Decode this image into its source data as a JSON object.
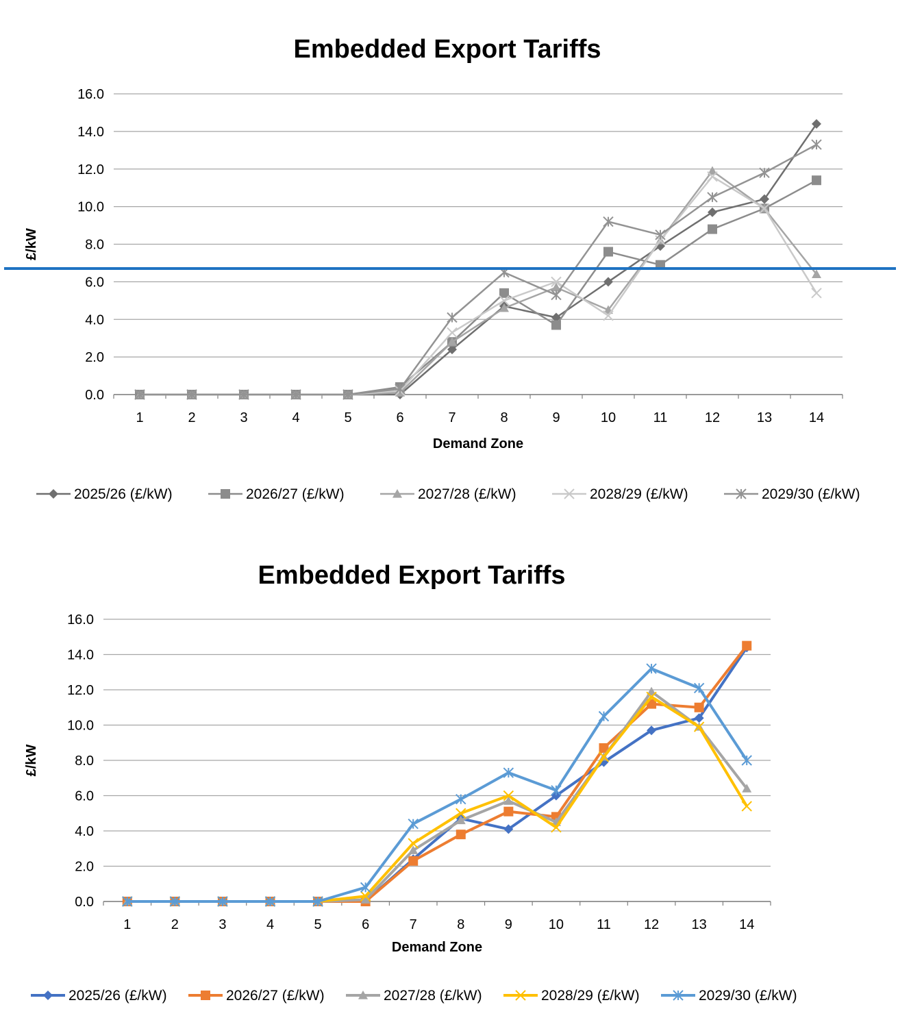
{
  "colors": {
    "overlay_line": "#1f73c2",
    "gridline": "#a6a6a6"
  },
  "chart_data": [
    {
      "type": "line",
      "title": "Embedded Export Tariffs",
      "xlabel": "Demand Zone",
      "ylabel": "£/kW",
      "ylim": [
        0,
        16
      ],
      "yticks": [
        "0.0",
        "2.0",
        "4.0",
        "6.0",
        "8.0",
        "10.0",
        "12.0",
        "14.0",
        "16.0"
      ],
      "categories": [
        "1",
        "2",
        "3",
        "4",
        "5",
        "6",
        "7",
        "8",
        "9",
        "10",
        "11",
        "12",
        "13",
        "14"
      ],
      "grid": true,
      "legend": "bottom",
      "series": [
        {
          "name": "2025/26 (£/kW)",
          "color": "#6f6f6f",
          "marker": "diamond",
          "values": [
            0,
            0,
            0,
            0,
            0,
            0,
            2.4,
            4.7,
            4.1,
            6.0,
            7.9,
            9.7,
            10.4,
            14.4
          ]
        },
        {
          "name": "2026/27 (£/kW)",
          "color": "#8c8c8c",
          "marker": "square",
          "values": [
            0,
            0,
            0,
            0,
            0,
            0.4,
            2.8,
            5.4,
            3.7,
            7.6,
            6.9,
            8.8,
            9.9,
            11.4
          ]
        },
        {
          "name": "2027/28 (£/kW)",
          "color": "#a5a5a5",
          "marker": "triangle",
          "values": [
            0,
            0,
            0,
            0,
            0,
            0.1,
            2.8,
            4.6,
            5.7,
            4.5,
            8.2,
            11.9,
            9.9,
            6.4
          ]
        },
        {
          "name": "2028/29 (£/kW)",
          "color": "#c9c9c9",
          "marker": "x",
          "values": [
            0,
            0,
            0,
            0,
            0,
            0.2,
            3.3,
            5.0,
            6.0,
            4.2,
            8.2,
            11.6,
            9.9,
            5.4
          ]
        },
        {
          "name": "2029/30 (£/kW)",
          "color": "#939393",
          "marker": "star",
          "values": [
            0,
            0,
            0,
            0,
            0,
            0.3,
            4.1,
            6.5,
            5.3,
            9.2,
            8.5,
            10.5,
            11.8,
            13.3
          ]
        }
      ]
    },
    {
      "type": "line",
      "title": "Embedded Export Tariffs",
      "xlabel": "Demand Zone",
      "ylabel": "£/kW",
      "ylim": [
        0,
        16
      ],
      "yticks": [
        "0.0",
        "2.0",
        "4.0",
        "6.0",
        "8.0",
        "10.0",
        "12.0",
        "14.0",
        "16.0"
      ],
      "categories": [
        "1",
        "2",
        "3",
        "4",
        "5",
        "6",
        "7",
        "8",
        "9",
        "10",
        "11",
        "12",
        "13",
        "14"
      ],
      "grid": true,
      "legend": "bottom",
      "series": [
        {
          "name": "2025/26 (£/kW)",
          "color": "#4472c4",
          "marker": "diamond",
          "values": [
            0,
            0,
            0,
            0,
            0,
            0,
            2.4,
            4.7,
            4.1,
            6.0,
            7.9,
            9.7,
            10.4,
            14.4
          ]
        },
        {
          "name": "2026/27 (£/kW)",
          "color": "#ed7d31",
          "marker": "square",
          "values": [
            0,
            0,
            0,
            0,
            0,
            0,
            2.3,
            3.8,
            5.1,
            4.8,
            8.7,
            11.2,
            11.0,
            14.5
          ]
        },
        {
          "name": "2027/28 (£/kW)",
          "color": "#a5a5a5",
          "marker": "triangle",
          "values": [
            0,
            0,
            0,
            0,
            0,
            0.1,
            2.9,
            4.6,
            5.7,
            4.5,
            8.2,
            11.9,
            9.9,
            6.4
          ]
        },
        {
          "name": "2028/29 (£/kW)",
          "color": "#ffc000",
          "marker": "x",
          "values": [
            0,
            0,
            0,
            0,
            0,
            0.3,
            3.3,
            5.0,
            6.0,
            4.2,
            8.2,
            11.6,
            9.9,
            5.4
          ]
        },
        {
          "name": "2029/30 (£/kW)",
          "color": "#5b9bd5",
          "marker": "star",
          "values": [
            0,
            0,
            0,
            0,
            0,
            0.8,
            4.4,
            5.8,
            7.3,
            6.3,
            10.5,
            13.2,
            12.1,
            8.0
          ]
        }
      ]
    }
  ]
}
